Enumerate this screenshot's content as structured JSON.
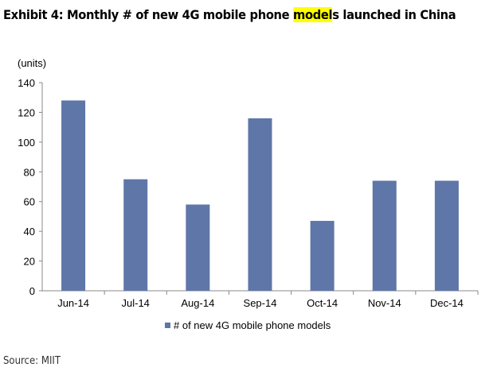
{
  "title": {
    "prefix": "Exhibit 4: Monthly # of new 4G mobile phone ",
    "highlight": "model",
    "suffix": "s launched in China"
  },
  "source": "Source: MIIT",
  "chart_data": {
    "type": "bar",
    "title": "Exhibit 4: Monthly # of new 4G mobile phone models launched in China",
    "xlabel": "",
    "ylabel": "(units)",
    "categories": [
      "Jun-14",
      "Jul-14",
      "Aug-14",
      "Sep-14",
      "Oct-14",
      "Nov-14",
      "Dec-14"
    ],
    "series": [
      {
        "name": "# of new 4G mobile phone models",
        "values": [
          128,
          75,
          58,
          116,
          47,
          74,
          74
        ],
        "color": "#5f76a8"
      }
    ],
    "ylim": [
      0,
      140
    ],
    "yticks": [
      0,
      20,
      40,
      60,
      80,
      100,
      120,
      140
    ],
    "grid": false,
    "legend": "bottom"
  }
}
